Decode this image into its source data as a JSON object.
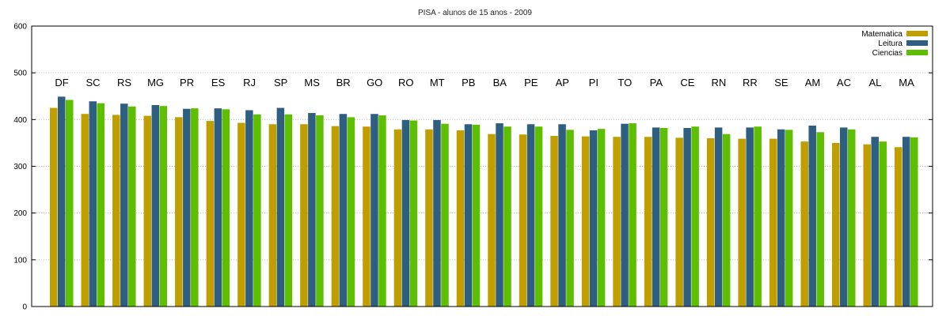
{
  "chart_data": {
    "type": "bar",
    "title": "PISA - alunos de 15 anos - 2009",
    "xlabel": "",
    "ylabel": "",
    "ylim": [
      0,
      600
    ],
    "yticks": [
      0,
      100,
      200,
      300,
      400,
      500,
      600
    ],
    "grid": true,
    "legend_position": "top-right",
    "category_label_level": 480,
    "categories": [
      "DF",
      "SC",
      "RS",
      "MG",
      "PR",
      "ES",
      "RJ",
      "SP",
      "MS",
      "BR",
      "GO",
      "RO",
      "MT",
      "PB",
      "BA",
      "PE",
      "AP",
      "PI",
      "TO",
      "PA",
      "CE",
      "RN",
      "RR",
      "SE",
      "AM",
      "AC",
      "AL",
      "MA"
    ],
    "series": [
      {
        "name": "Matematica",
        "color": "#c09e00",
        "values": [
          425,
          412,
          410,
          408,
          405,
          397,
          393,
          390,
          390,
          386,
          385,
          379,
          379,
          377,
          369,
          368,
          365,
          364,
          363,
          363,
          361,
          360,
          359,
          359,
          353,
          350,
          347,
          341
        ]
      },
      {
        "name": "Leitura",
        "color": "#2e5f80",
        "values": [
          449,
          439,
          434,
          431,
          423,
          424,
          420,
          425,
          414,
          412,
          412,
          399,
          399,
          390,
          392,
          390,
          390,
          377,
          391,
          383,
          382,
          383,
          383,
          379,
          387,
          383,
          363,
          363
        ]
      },
      {
        "name": "Ciencias",
        "color": "#5ebf00",
        "values": [
          442,
          435,
          428,
          429,
          424,
          422,
          411,
          411,
          409,
          405,
          409,
          398,
          391,
          389,
          385,
          385,
          378,
          380,
          392,
          382,
          385,
          369,
          385,
          378,
          373,
          379,
          353,
          362
        ]
      }
    ]
  }
}
